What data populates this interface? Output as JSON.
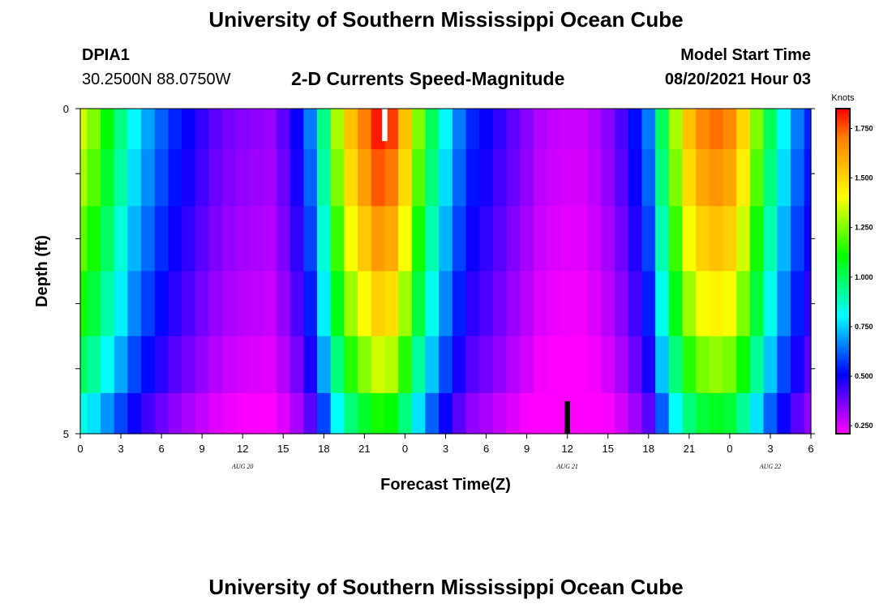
{
  "header": {
    "title": "University of Southern Mississippi Ocean Cube",
    "station": "DPIA1",
    "coords": "30.2500N  88.0750W",
    "chart_title": "2-D Currents Speed-Magnitude",
    "model_label": "Model Start Time",
    "model_time": "08/20/2021 Hour 03"
  },
  "footer": {
    "title": "University of Southern Mississippi Ocean Cube"
  },
  "colors": {
    "scale": [
      "#ff00ff",
      "#8000ff",
      "#0000ff",
      "#0080ff",
      "#00ffff",
      "#00ff80",
      "#00ff00",
      "#80ff00",
      "#ffff00",
      "#ffc000",
      "#ff8000",
      "#ff0000"
    ]
  },
  "chart_data": {
    "type": "heatmap",
    "xlabel": "Forecast Time(Z)",
    "ylabel": "Depth (ft)",
    "x_ticks": [
      "0",
      "3",
      "6",
      "9",
      "12",
      "15",
      "18",
      "21",
      "0",
      "3",
      "6",
      "9",
      "12",
      "15",
      "18",
      "21",
      "0",
      "3",
      "6"
    ],
    "x_hours": [
      0,
      3,
      6,
      9,
      12,
      15,
      18,
      21,
      24,
      27,
      30,
      33,
      36,
      39,
      42,
      45,
      48,
      51,
      54
    ],
    "date_labels": [
      {
        "text": "AUG  20",
        "hour": 12
      },
      {
        "text": "AUG  21",
        "hour": 36
      },
      {
        "text": "AUG  22",
        "hour": 51
      }
    ],
    "xlim": [
      0,
      54
    ],
    "y_ticks": [
      "0",
      "5"
    ],
    "ylim": [
      0,
      5
    ],
    "depth_layers": 5,
    "depths": [
      0.25,
      1.0,
      2.0,
      3.0,
      4.0,
      4.75
    ],
    "colorbar": {
      "unit": "Knots",
      "min": 0.21,
      "max": 1.85,
      "labels": [
        "1.750",
        "1.500",
        "1.250",
        "1.000",
        "0.750",
        "0.500",
        "0.250"
      ],
      "label_values": [
        1.75,
        1.5,
        1.25,
        1.0,
        0.75,
        0.5,
        0.25
      ]
    },
    "profile_hours": [
      0,
      1,
      2,
      3,
      4,
      5,
      6,
      7,
      8,
      9,
      10,
      11,
      12,
      13,
      14,
      15,
      16,
      17,
      18,
      19,
      20,
      21,
      22,
      23,
      24,
      25,
      26,
      27,
      28,
      29,
      30,
      31,
      32,
      33,
      34,
      35,
      36,
      37,
      38,
      39,
      40,
      41,
      42,
      43,
      44,
      45,
      46,
      47,
      48,
      49,
      50,
      51,
      52,
      53,
      54
    ],
    "surface_speed": [
      1.35,
      1.25,
      1.1,
      0.95,
      0.8,
      0.7,
      0.62,
      0.55,
      0.5,
      0.45,
      0.4,
      0.37,
      0.35,
      0.34,
      0.33,
      0.4,
      0.5,
      0.65,
      0.95,
      1.3,
      1.55,
      1.7,
      1.82,
      1.78,
      1.55,
      1.25,
      1.0,
      0.8,
      0.65,
      0.55,
      0.5,
      0.45,
      0.4,
      0.35,
      0.3,
      0.28,
      0.27,
      0.27,
      0.3,
      0.35,
      0.42,
      0.52,
      0.65,
      1.0,
      1.3,
      1.55,
      1.68,
      1.72,
      1.68,
      1.5,
      1.25,
      1.0,
      0.8,
      0.65,
      0.55
    ],
    "depth_factor": [
      1.0,
      0.96,
      0.9,
      0.83,
      0.74,
      0.62
    ],
    "markers": [
      {
        "hour": 22.5,
        "depth_from": 0,
        "depth_to": 0.5,
        "color": "#ffffff"
      },
      {
        "hour": 36.0,
        "depth_from": 4.5,
        "depth_to": 5,
        "color": "#000000"
      }
    ]
  }
}
